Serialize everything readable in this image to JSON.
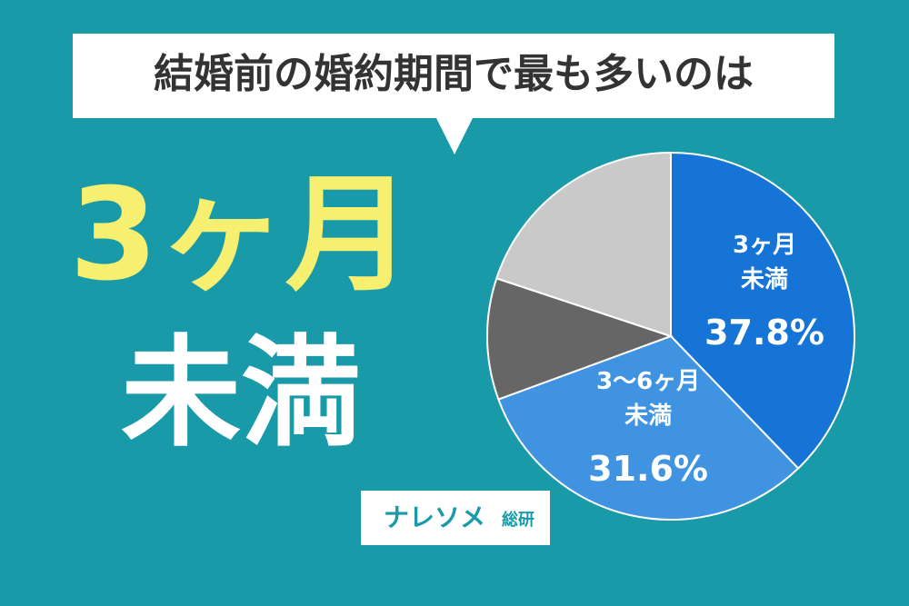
{
  "chart_data": {
    "type": "pie",
    "title": "結婚前の婚約期間で最も多いのは",
    "headline": [
      "3ヶ月",
      "未満"
    ],
    "logo": [
      "ナレソメ",
      "総研"
    ],
    "categories": [
      [
        "3ヶ月",
        "未満"
      ],
      [
        "3〜6ヶ月",
        "未満"
      ],
      null,
      null
    ],
    "values": [
      37.8,
      31.6,
      10.7,
      19.9
    ],
    "value_labels": [
      "37.8%",
      "31.6%",
      null,
      null
    ],
    "colors": [
      "#1574d6",
      "#3f93e0",
      "#666666",
      "#c9c9c9"
    ]
  }
}
